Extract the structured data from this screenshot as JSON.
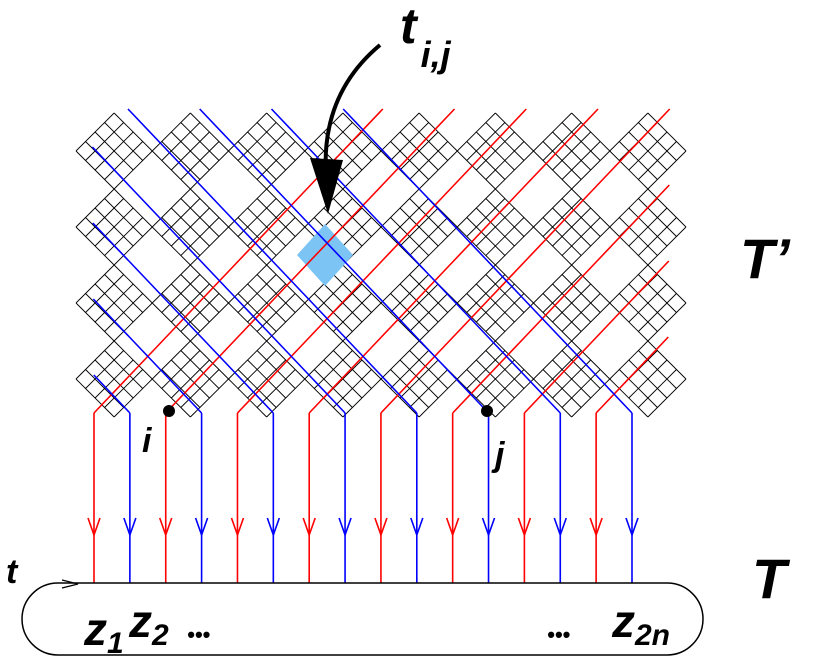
{
  "labels": {
    "tij_main": "t",
    "tij_sub": "i,j",
    "t_prime": "T’",
    "t_big": "T",
    "i": "i",
    "j": "j",
    "t_small": "t",
    "z1_main": "z",
    "z1_sub": "1",
    "z2_main": "z",
    "z2_sub": "2",
    "dots_left": "•••",
    "dots_right": "•••",
    "z2n_main": "z",
    "z2n_sub": "2n"
  },
  "colors": {
    "red": "#ff0000",
    "blue": "#0000ff",
    "line": "#000000",
    "highlight": "#7cc4f4"
  },
  "strands": {
    "count": 16,
    "color_pattern": [
      "red",
      "blue",
      "red",
      "blue",
      "red",
      "blue",
      "red",
      "blue",
      "red",
      "blue",
      "red",
      "blue",
      "red",
      "blue",
      "red",
      "blue"
    ]
  },
  "highlighted_tile": {
    "row": 1,
    "col": 3
  }
}
